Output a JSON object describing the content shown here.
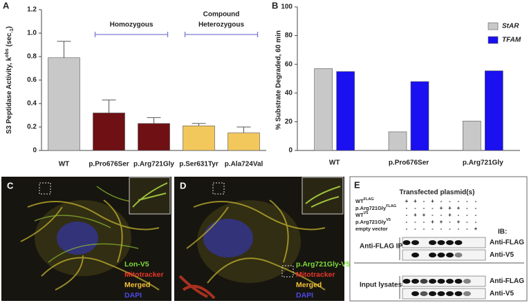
{
  "panel_labels": [
    "A",
    "B",
    "C",
    "D",
    "E"
  ],
  "chart_data": [
    {
      "type": "bar",
      "ylabel": {
        "text": "S3 Peptidase Activity, k",
        "sub": "obs",
        "unit": " (sec",
        "sup": "-1",
        "close": ")"
      },
      "categories": [
        "WT",
        "p.Pro676Ser",
        "p.Arg721Gly",
        "p.Ser631Tyr",
        "p.Ala724Val"
      ],
      "values": [
        0.79,
        0.32,
        0.23,
        0.21,
        0.15
      ],
      "errors": [
        0.14,
        0.11,
        0.05,
        0.02,
        0.05
      ],
      "colors": [
        "#c8c8c8",
        "#6e1014",
        "#6e1014",
        "#f2c75c",
        "#f2c75c"
      ],
      "ylim": [
        0,
        1.2
      ],
      "yticks": [
        0,
        0.2,
        0.4,
        0.6,
        0.8,
        {
          "value": 1.0,
          "label": "1.0"
        },
        1.2
      ],
      "annotations": [
        {
          "lines": [
            "Homozygous"
          ]
        },
        {
          "lines": [
            "Compound",
            "Heterozygous"
          ]
        }
      ]
    },
    {
      "type": "grouped-bar",
      "ylabel": "% Substrate Degraded, 60 min",
      "categories": [
        "WT",
        "p.Pro676Ser",
        "p.Arg721Gly"
      ],
      "series": [
        {
          "name": "StAR",
          "color": "#c8c8c8",
          "values": [
            57,
            13,
            20.5
          ]
        },
        {
          "name": "TFAM",
          "color": "#1a10f0",
          "values": [
            55,
            48,
            55.5
          ]
        }
      ],
      "ylim": [
        0,
        100
      ],
      "yticks": [
        0,
        20,
        40,
        60,
        80,
        100
      ],
      "legend": "upper-right"
    }
  ],
  "images": [
    {
      "channels": [
        {
          "text": "Lon-V5",
          "color": "#7ddc3c"
        },
        {
          "text": "Mitotracker",
          "color": "#e8362a"
        },
        {
          "text": "Merged",
          "color": "#f2c23a"
        },
        {
          "text": "DAPI",
          "color": "#4a4ae8"
        }
      ]
    },
    {
      "channels": [
        {
          "text": "p.Arg721Gly-V5",
          "color": "#7ddc3c"
        },
        {
          "text": "Mitotracker",
          "color": "#e8362a"
        },
        {
          "text": "Merged",
          "color": "#f2c23a"
        },
        {
          "text": "DAPI",
          "color": "#4a4ae8"
        }
      ]
    }
  ],
  "blot": {
    "title": "Transfected plasmid(s)",
    "rows": [
      {
        "label": "WT",
        "sup": "FLAG",
        "signs": [
          "+",
          "+",
          "-",
          "+",
          "-",
          "-",
          "-",
          "-",
          "-"
        ]
      },
      {
        "label": "p.Arg721Gly",
        "sup": "FLAG",
        "signs": [
          "-",
          "-",
          "-",
          "-",
          "+",
          "+",
          "+",
          "-",
          "-"
        ]
      },
      {
        "label": "WT",
        "sup": "V5",
        "signs": [
          "-",
          "+",
          "+",
          "-",
          "-",
          "+",
          "-",
          "-",
          "-"
        ]
      },
      {
        "label": "p.Arg721Gly",
        "sup": "V5",
        "signs": [
          "-",
          "-",
          "-",
          "+",
          "+",
          "-",
          "+",
          "-",
          "-"
        ]
      },
      {
        "label": "empty vector",
        "signs": [
          "-",
          "-",
          "-",
          "-",
          "-",
          "-",
          "-",
          "-",
          "+"
        ]
      }
    ],
    "ib_label": "IB:",
    "groups": [
      {
        "label": "Anti-FLAG IP",
        "antibodies": [
          "Anti-FLAG",
          "Anti-V5"
        ]
      },
      {
        "label": "Input lysates",
        "antibodies": [
          "Anti-FLAG",
          "Anti-V5"
        ]
      }
    ]
  }
}
